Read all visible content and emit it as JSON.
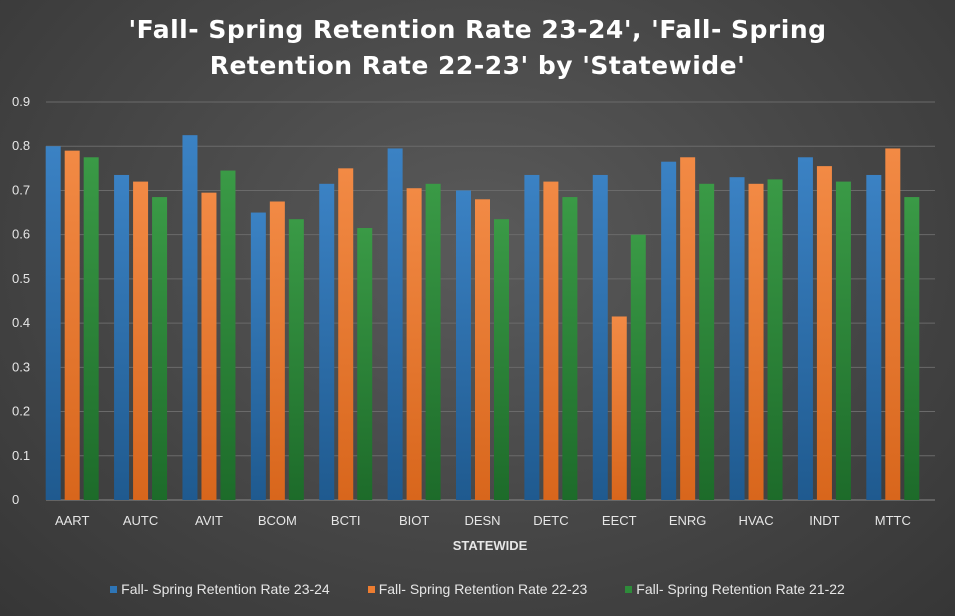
{
  "chart_data": {
    "type": "bar",
    "title_lines": [
      "'Fall- Spring Retention Rate 23-24', 'Fall- Spring",
      "Retention Rate 22-23' by 'Statewide'"
    ],
    "xlabel": "STATEWIDE",
    "ylabel": "",
    "ylim": [
      0,
      0.9
    ],
    "yticks": [
      "0",
      "0.1",
      "0.2",
      "0.3",
      "0.4",
      "0.5",
      "0.6",
      "0.7",
      "0.8",
      "0.9"
    ],
    "grid": true,
    "legend_position": "bottom",
    "categories": [
      "AART",
      "AUTC",
      "AVIT",
      "BCOM",
      "BCTI",
      "BIOT",
      "DESN",
      "DETC",
      "EECT",
      "ENRG",
      "HVAC",
      "INDT",
      "MTTC"
    ],
    "series": [
      {
        "name": "Fall- Spring Retention Rate 23-24",
        "color": "#2e75b6",
        "values": [
          0.8,
          0.735,
          0.825,
          0.65,
          0.715,
          0.795,
          0.7,
          0.735,
          0.735,
          0.765,
          0.73,
          0.775,
          0.735
        ]
      },
      {
        "name": "Fall- Spring Retention Rate 22-23",
        "color": "#ed7d31",
        "values": [
          0.79,
          0.72,
          0.695,
          0.675,
          0.75,
          0.705,
          0.68,
          0.72,
          0.415,
          0.775,
          0.715,
          0.755,
          0.795
        ]
      },
      {
        "name": "Fall- Spring Retention Rate 21-22",
        "color": "#2e8b3a",
        "values": [
          0.775,
          0.685,
          0.745,
          0.635,
          0.615,
          0.715,
          0.635,
          0.685,
          0.6,
          0.715,
          0.725,
          0.72,
          0.685
        ]
      }
    ]
  }
}
